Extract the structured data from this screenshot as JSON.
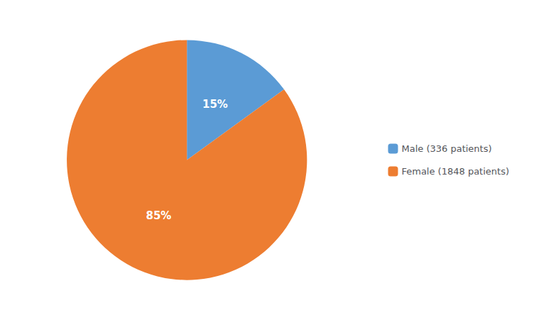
{
  "chart_data": {
    "type": "pie",
    "categories": [
      "Male (336 patients)",
      "Female (1848 patients)"
    ],
    "values": [
      15,
      85
    ],
    "value_labels": [
      "15%",
      "85%"
    ],
    "colors": [
      "#5b9bd5",
      "#ed7d31"
    ],
    "data_labels": true,
    "legend": "right"
  }
}
